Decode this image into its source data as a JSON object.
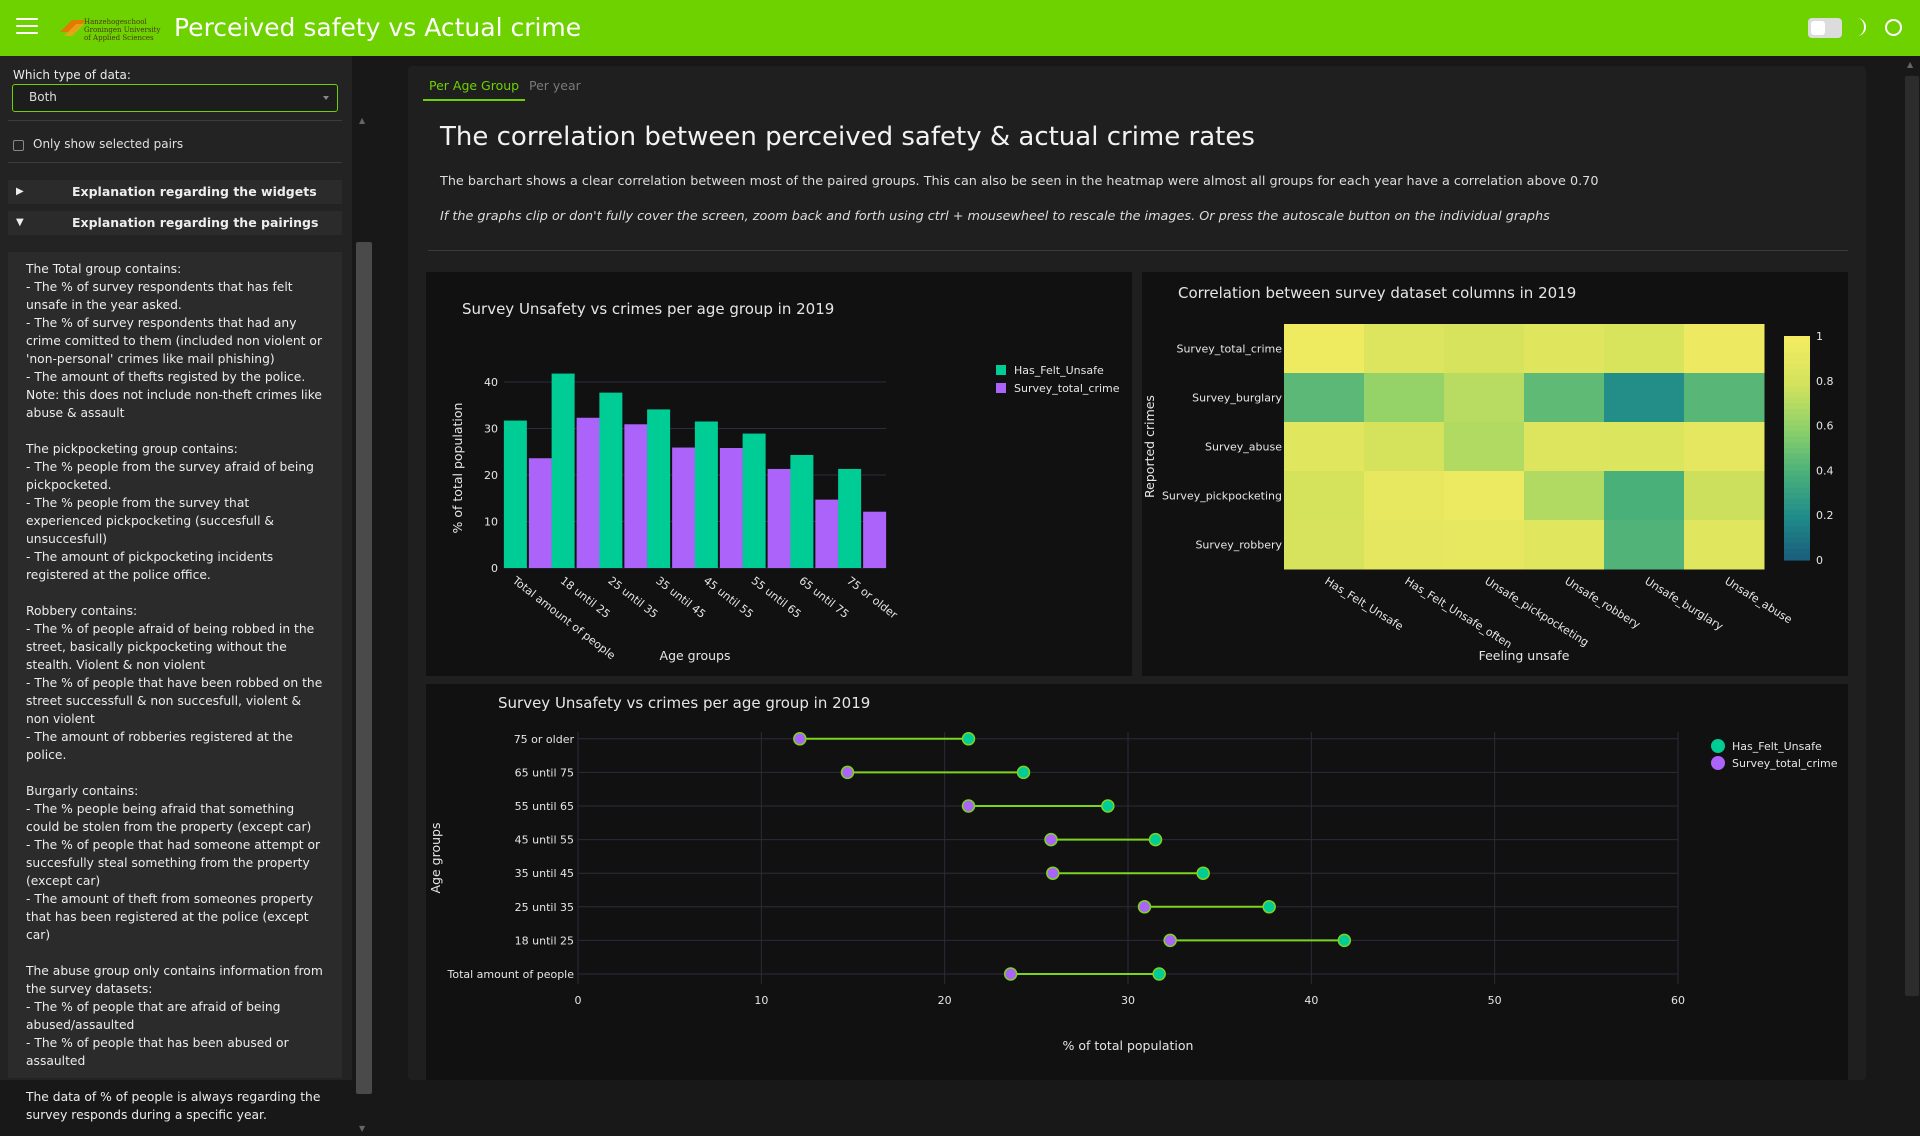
{
  "header": {
    "title": "Perceived safety vs Actual crime",
    "logo_text": "Hanzehogeschool Groningen University of Applied Sciences"
  },
  "icons": {
    "menu": "hamburger-icon",
    "theme_toggle": "toggle-switch",
    "theme": "moon-icon",
    "circle": "circle-icon"
  },
  "sidebar": {
    "data_type_label": "Which type of data:",
    "data_type_value": "Both",
    "only_pairs_label": "Only show selected pairs",
    "acc_widgets": "Explanation regarding the widgets",
    "acc_pairings": "Explanation regarding the pairings",
    "explanation": "The Total group contains:\n- The % of survey respondents that has felt unsafe in the year asked.\n- The % of survey respondents that had any crime comitted to them (included non violent or 'non-personal' crimes like mail phishing)\n- The amount of thefts registed by the police. Note: this does not include non-theft crimes like abuse & assault\n\nThe pickpocketing group contains:\n- The % people from the survey afraid of being pickpocketed.\n- The % people from the survey that experienced pickpocketing (succesfull & unsuccesfull)\n- The amount of pickpocketing incidents registered at the police office.\n\nRobbery contains:\n- The % of people afraid of being robbed in the street, basically pickpocketing without the stealth. Violent & non violent\n- The % of people that have been robbed on the street successfull & non succesfull, violent & non violent\n- The amount of robberies registered at the police.\n\nBurgarly contains:\n- The % people being afraid that something could be stolen from the property (except car)\n- The % of people that had someone attempt or succesfully steal something from the property (except car)\n- The amount of theft from someones property that has been registered at the police (except car)\n\nThe abuse group only contains information from the survey datasets:\n- The % of people that are afraid of being abused/assaulted\n- The % of people that has been abused or assaulted\n\nThe data of % of people is always regarding the survey responds during a specific year."
  },
  "main": {
    "tabs": [
      {
        "label": "Per Age Group"
      },
      {
        "label": "Per year"
      }
    ],
    "title": "The correlation between perceived safety & actual crime rates",
    "description": "The barchart shows a clear correlation between most of the paired groups. This can also be seen in the heatmap were almost all groups for each year have a correlation above 0.70",
    "note": "If the graphs clip or don't fully cover the screen, zoom back and forth using ctrl + mousewheel to rescale the images. Or press the autoscale button on the individual graphs"
  },
  "colors": {
    "accent": "#6ed100",
    "series_a": "#00cc96",
    "series_b": "#ab63fa",
    "lollipop_line": "#7ed321"
  },
  "chart_data": [
    {
      "type": "bar",
      "title": "Survey Unsafety vs crimes per age group in 2019",
      "xlabel": "Age groups",
      "ylabel": "% of total population",
      "ylim": [
        0,
        43
      ],
      "yticks": [
        0,
        10,
        20,
        30,
        40
      ],
      "categories": [
        "Total amount of people",
        "18 until 25",
        "25 until 35",
        "35 until 45",
        "45 until 55",
        "55 until 65",
        "65 until 75",
        "75  or older"
      ],
      "series": [
        {
          "name": "Has_Felt_Unsafe",
          "values": [
            31.7,
            41.8,
            37.7,
            34.1,
            31.5,
            28.9,
            24.3,
            21.3
          ]
        },
        {
          "name": "Survey_total_crime",
          "values": [
            23.6,
            32.3,
            30.9,
            25.9,
            25.8,
            21.3,
            14.7,
            12.1
          ]
        }
      ],
      "legend": "top-right"
    },
    {
      "type": "heatmap",
      "title": "Correlation between survey dataset columns in 2019",
      "xlabel": "Feeling unsafe",
      "ylabel": "Reported crimes",
      "x": [
        "Has_Felt_Unsafe",
        "Has_Felt_Unsafe_often",
        "Unsafe_pickpocketing",
        "Unsafe_robbery",
        "Unsafe_burglary",
        "Unsafe_abuse"
      ],
      "y": [
        "Survey_total_crime",
        "Survey_burglary",
        "Survey_abuse",
        "Survey_pickpocketing",
        "Survey_robbery"
      ],
      "z": [
        [
          0.97,
          0.86,
          0.82,
          0.87,
          0.83,
          0.96
        ],
        [
          0.45,
          0.62,
          0.72,
          0.46,
          0.22,
          0.44
        ],
        [
          0.88,
          0.8,
          0.7,
          0.86,
          0.85,
          0.9
        ],
        [
          0.8,
          0.92,
          0.95,
          0.7,
          0.4,
          0.78
        ],
        [
          0.82,
          0.9,
          0.92,
          0.88,
          0.42,
          0.88
        ]
      ],
      "colorbar_ticks": [
        0,
        0.2,
        0.4,
        0.6,
        0.8,
        1
      ],
      "colorscale": [
        "#1a5a7a",
        "#1f8a8a",
        "#4ab07a",
        "#8ed16a",
        "#d4e25c",
        "#f3ec62"
      ]
    },
    {
      "type": "scatter",
      "title": "Survey Unsafety vs crimes per age group in  2019",
      "xlabel": "% of total population",
      "ylabel": "Age groups",
      "xlim": [
        0,
        60
      ],
      "xticks": [
        0,
        10,
        20,
        30,
        40,
        50,
        60
      ],
      "categories": [
        "Total amount of people",
        "18 until 25",
        "25 until 35",
        "35 until 45",
        "45 until 55",
        "55 until 65",
        "65 until 75",
        "75  or older"
      ],
      "series": [
        {
          "name": "Has_Felt_Unsafe",
          "values": [
            31.7,
            41.8,
            37.7,
            34.1,
            31.5,
            28.9,
            24.3,
            21.3
          ]
        },
        {
          "name": "Survey_total_crime",
          "values": [
            23.6,
            32.3,
            30.9,
            25.9,
            25.8,
            21.3,
            14.7,
            12.1
          ]
        }
      ],
      "legend": "top-right"
    }
  ]
}
